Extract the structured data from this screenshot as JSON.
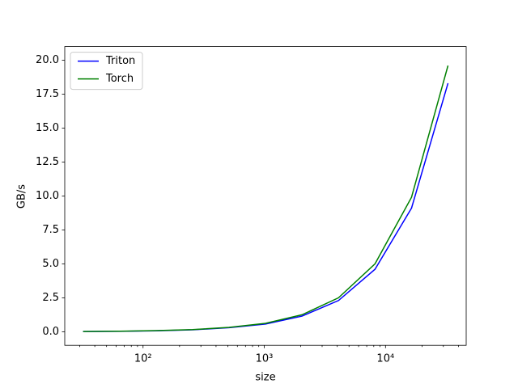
{
  "chart_data": {
    "type": "line",
    "x_label": "size",
    "y_label": "GB/s",
    "x": [
      32,
      64,
      128,
      256,
      512,
      1024,
      2048,
      4096,
      8192,
      16384,
      32768
    ],
    "series": [
      {
        "name": "Triton",
        "color": "#0000ff",
        "values": [
          0.015,
          0.03,
          0.07,
          0.14,
          0.3,
          0.57,
          1.15,
          2.3,
          4.6,
          9.1,
          18.3
        ]
      },
      {
        "name": "Torch",
        "color": "#008000",
        "values": [
          0.02,
          0.04,
          0.08,
          0.16,
          0.32,
          0.62,
          1.25,
          2.5,
          5.0,
          9.9,
          19.6
        ]
      }
    ],
    "x_log_scale": true,
    "xlim": [
      22.6,
      46300
    ],
    "xticks": [
      {
        "value": 100,
        "label": "10²"
      },
      {
        "value": 1000,
        "label": "10³"
      },
      {
        "value": 10000,
        "label": "10⁴"
      }
    ],
    "ylim": [
      -1.0,
      21.0
    ],
    "yticks": [
      {
        "value": 0,
        "label": "0.0"
      },
      2.5,
      {
        "value": 5,
        "label": "5.0"
      },
      7.5,
      {
        "value": 10,
        "label": "10.0"
      },
      12.5,
      {
        "value": 15,
        "label": "15.0"
      },
      17.5,
      {
        "value": 20,
        "label": "20.0"
      }
    ],
    "legend_position": "upper-left"
  }
}
